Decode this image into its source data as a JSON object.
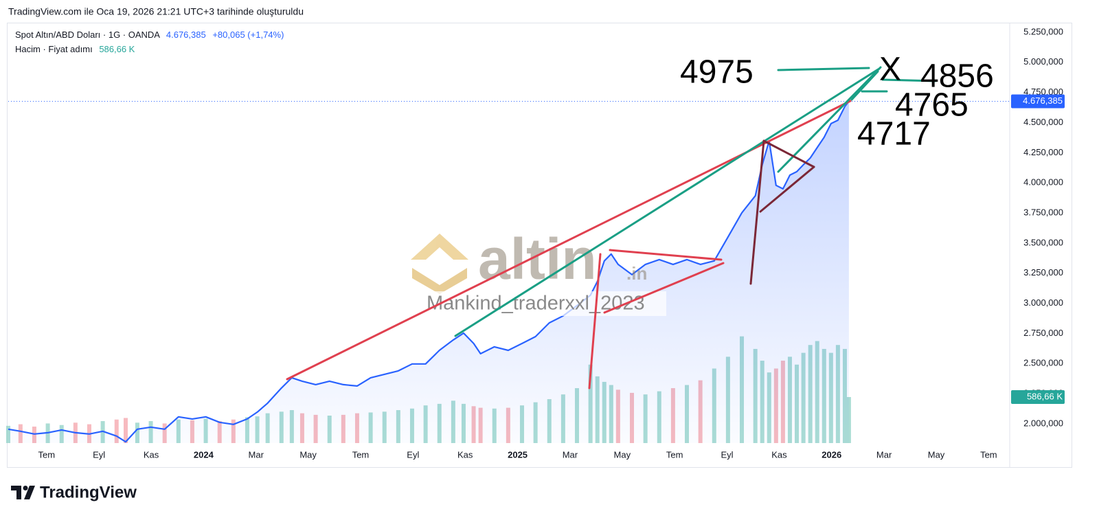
{
  "header": {
    "caption": "TradingView.com ile Oca 19, 2026 21:21 UTC+3 tarihinde oluşturuldu",
    "brand": "TradingView"
  },
  "watermark": {
    "name": "altin",
    "suffix": ".in",
    "author": "Mankind_traderxxl_2023"
  },
  "chart_data": {
    "type": "line",
    "change": "+80,065 (+1,74%)",
    "last_price": {
      "value": 4676.385,
      "label": "4.676,385"
    },
    "volume_last": {
      "value": 586.66,
      "label": "586,66 K"
    },
    "annotations": [
      "4975",
      "X",
      "4856",
      "4765",
      "4717"
    ],
    "x": [
      2023.378,
      2023.417,
      2023.461,
      2023.504,
      2023.548,
      2023.592,
      2023.636,
      2023.679,
      2023.723,
      2023.752,
      2023.789,
      2023.832,
      2023.876,
      2023.92,
      2023.964,
      2024.007,
      2024.051,
      2024.095,
      2024.139,
      2024.171,
      2024.204,
      2024.248,
      2024.281,
      2024.314,
      2024.357,
      2024.401,
      2024.445,
      2024.489,
      2024.532,
      2024.576,
      2024.62,
      2024.664,
      2024.707,
      2024.751,
      2024.795,
      2024.828,
      2024.86,
      2024.882,
      2024.926,
      2024.97,
      2025.014,
      2025.057,
      2025.101,
      2025.145,
      2025.189,
      2025.232,
      2025.254,
      2025.276,
      2025.298,
      2025.32,
      2025.364,
      2025.407,
      2025.451,
      2025.495,
      2025.539,
      2025.582,
      2025.626,
      2025.67,
      2025.714,
      2025.757,
      2025.779,
      2025.801,
      2025.823,
      2025.845,
      2025.867,
      2025.889,
      2025.91,
      2025.932,
      2025.954,
      2025.976,
      2025.998,
      2026.02,
      2026.042,
      2026.055
    ],
    "series": [
      {
        "name": "Spot Altın/ABD Doları · 1G · OANDA",
        "color": "#2962ff",
        "values": [
          1955,
          1938,
          1915,
          1926,
          1949,
          1926,
          1915,
          1938,
          1898,
          1850,
          1955,
          1972,
          1955,
          2058,
          2040,
          2058,
          2012,
          1995,
          2040,
          2097,
          2171,
          2297,
          2382,
          2354,
          2325,
          2354,
          2325,
          2314,
          2382,
          2411,
          2439,
          2497,
          2497,
          2610,
          2696,
          2753,
          2667,
          2582,
          2639,
          2610,
          2667,
          2724,
          2838,
          2896,
          2981,
          3067,
          3181,
          3352,
          3409,
          3323,
          3238,
          3323,
          3363,
          3323,
          3363,
          3323,
          3352,
          3551,
          3751,
          3893,
          4150,
          4349,
          3979,
          3950,
          4064,
          4093,
          4150,
          4207,
          4292,
          4378,
          4492,
          4520,
          4634,
          4676.385
        ]
      },
      {
        "name": "Hacim · Fiyat adımı",
        "axis": "volume",
        "up_color": "#8fd1c6",
        "down_color": "#f4a3aa",
        "values": [
          220,
          240,
          210,
          250,
          230,
          260,
          240,
          280,
          300,
          320,
          260,
          280,
          250,
          300,
          290,
          310,
          280,
          300,
          330,
          340,
          380,
          400,
          420,
          380,
          360,
          350,
          360,
          380,
          390,
          400,
          420,
          440,
          480,
          500,
          540,
          500,
          470,
          450,
          440,
          450,
          480,
          520,
          560,
          620,
          700,
          1000,
          850,
          780,
          740,
          680,
          640,
          620,
          660,
          700,
          740,
          800,
          950,
          1100,
          1360,
          1200,
          1050,
          900,
          950,
          1050,
          1100,
          1000,
          1150,
          1250,
          1300,
          1200,
          1150,
          1250,
          1200,
          586.66
        ]
      }
    ],
    "xlim": [
      2023.378,
      2026.567
    ],
    "xticks": [
      {
        "value": 2023.5,
        "label": "Tem"
      },
      {
        "value": 2023.667,
        "label": "Eyl"
      },
      {
        "value": 2023.833,
        "label": "Kas"
      },
      2024,
      {
        "value": 2024.167,
        "label": "Mar"
      },
      {
        "value": 2024.333,
        "label": "May"
      },
      {
        "value": 2024.5,
        "label": "Tem"
      },
      {
        "value": 2024.667,
        "label": "Eyl"
      },
      {
        "value": 2024.833,
        "label": "Kas"
      },
      2025,
      {
        "value": 2025.167,
        "label": "Mar"
      },
      {
        "value": 2025.333,
        "label": "May"
      },
      {
        "value": 2025.5,
        "label": "Tem"
      },
      {
        "value": 2025.667,
        "label": "Eyl"
      },
      {
        "value": 2025.833,
        "label": "Kas"
      },
      2026,
      {
        "value": 2026.167,
        "label": "Mar"
      },
      {
        "value": 2026.333,
        "label": "May"
      },
      {
        "value": 2026.5,
        "label": "Tem"
      }
    ],
    "ylim": [
      1840,
      5318
    ],
    "yticks": [
      {
        "value": 5250,
        "label": "5.250,000"
      },
      {
        "value": 5000,
        "label": "5.000,000"
      },
      {
        "value": 4750,
        "label": "4.750,000"
      },
      {
        "value": 4500,
        "label": "4.500,000"
      },
      {
        "value": 4250,
        "label": "4.250,000"
      },
      {
        "value": 4000,
        "label": "4.000,000"
      },
      {
        "value": 3750,
        "label": "3.750,000"
      },
      {
        "value": 3500,
        "label": "3.500,000"
      },
      {
        "value": 3250,
        "label": "3.250,000"
      },
      {
        "value": 3000,
        "label": "3.000,000"
      },
      {
        "value": 2750,
        "label": "2.750,000"
      },
      {
        "value": 2500,
        "label": "2.500,000"
      },
      {
        "value": 2250,
        "label": "2.250,000"
      },
      {
        "value": 2000,
        "label": "2.000,000"
      }
    ],
    "volume_lim": [
      0,
      5340
    ],
    "grid": false
  }
}
